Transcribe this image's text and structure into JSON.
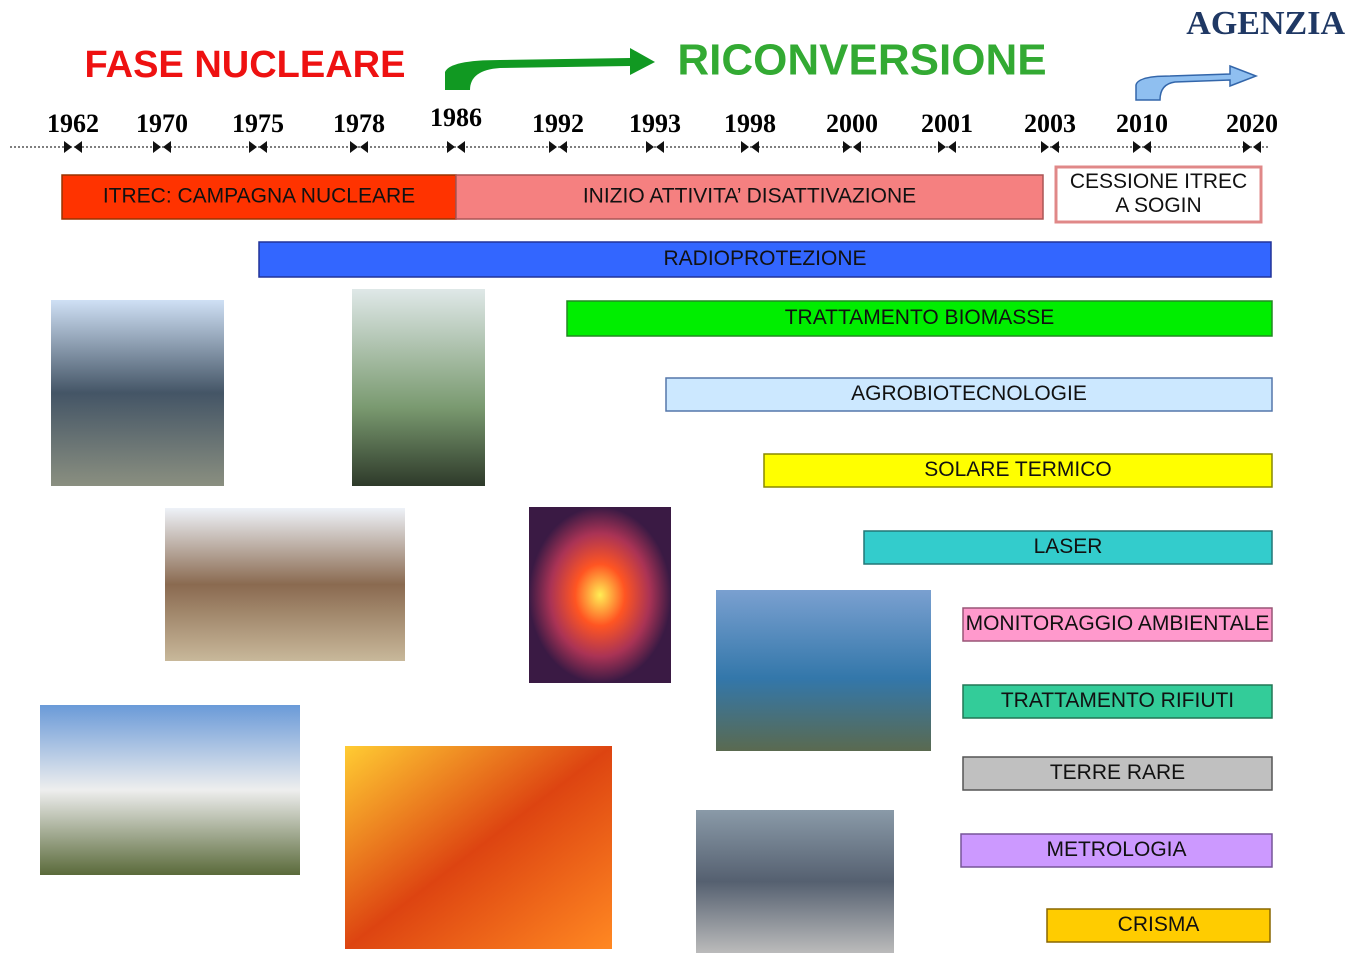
{
  "header": {
    "left_title": "FASE NUCLEARE",
    "right_title": "RICONVERSIONE",
    "corner": "AGENZIA"
  },
  "timeline": {
    "years": [
      "1962",
      "1970",
      "1975",
      "1978",
      "1986",
      "1992",
      "1993",
      "1998",
      "2000",
      "2001",
      "2003",
      "2010",
      "2020"
    ]
  },
  "bars": [
    {
      "lines": [
        "ITREC:  CAMPAGNA NUCLEARE"
      ]
    },
    {
      "lines": [
        "INIZIO ATTIVITA’ DISATTIVAZIONE"
      ]
    },
    {
      "lines": [
        "CESSIONE ITREC",
        "A SOGIN"
      ]
    },
    {
      "lines": [
        "RADIOPROTEZIONE"
      ]
    },
    {
      "lines": [
        "TRATTAMENTO BIOMASSE"
      ]
    },
    {
      "lines": [
        "AGROBIOTECNOLOGIE"
      ]
    },
    {
      "lines": [
        "SOLARE TERMICO"
      ]
    },
    {
      "lines": [
        "LASER"
      ]
    },
    {
      "lines": [
        "MONITORAGGIO AMBIENTALE"
      ]
    },
    {
      "lines": [
        "TRATTAMENTO RIFIUTI"
      ]
    },
    {
      "lines": [
        "TERRE RARE"
      ]
    },
    {
      "lines": [
        "METROLOGIA"
      ]
    },
    {
      "lines": [
        "CRISMA"
      ]
    }
  ]
}
